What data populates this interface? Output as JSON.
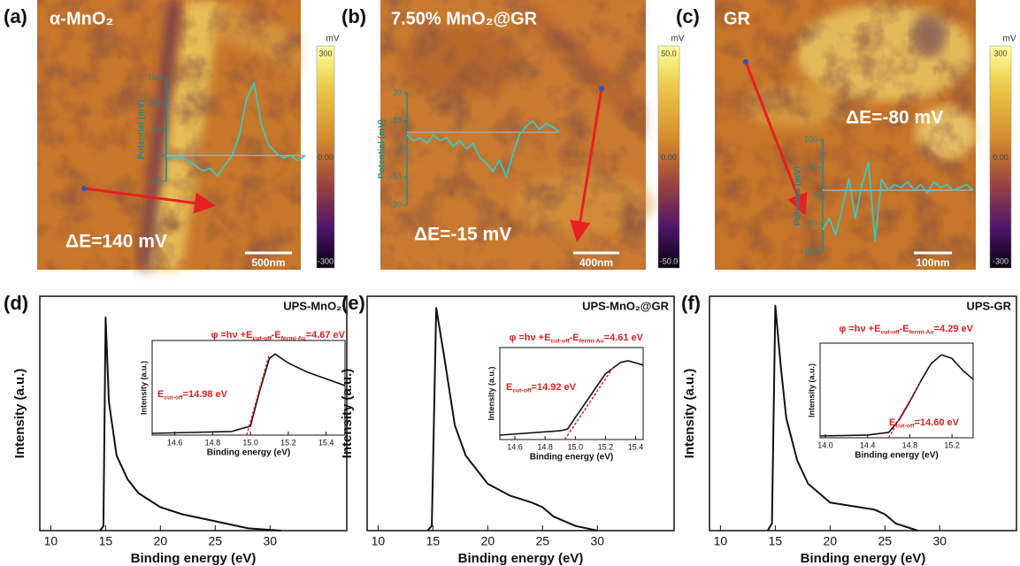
{
  "images": [
    {
      "label": "(a)",
      "title": "α-MnO₂",
      "delta": "ΔE=140 mV",
      "scale_bar": "500nm",
      "colorbar": {
        "unit": "mV",
        "clim": [
          -300,
          300
        ],
        "ticks": [
          300,
          {
            "value": 0,
            "label": "0.00"
          },
          -300
        ]
      }
    },
    {
      "label": "(b)",
      "title": "7.50% MnO₂@GR",
      "delta": "ΔE=-15 mV",
      "scale_bar": "400nm",
      "colorbar": {
        "unit": "mV",
        "clim": [
          -50,
          50
        ],
        "ticks": [
          {
            "value": 50,
            "label": "50.0"
          },
          {
            "value": 0,
            "label": "0.00"
          },
          {
            "value": -50,
            "label": "-50.0"
          }
        ]
      }
    },
    {
      "label": "(c)",
      "title": "GR",
      "delta": "ΔE=-80 mV",
      "scale_bar": "100nm",
      "colorbar": {
        "unit": "mV",
        "clim": [
          -300,
          300
        ],
        "ticks": [
          300,
          {
            "value": 0,
            "label": "0.00"
          },
          -300
        ]
      }
    }
  ],
  "chart_data": [
    {
      "type": "profile",
      "ylabel": "Potential (mV)",
      "color": "#3cc8c0",
      "x": [
        0,
        1,
        2,
        3,
        4,
        5,
        6,
        7,
        8,
        9,
        10,
        11,
        12,
        13,
        14,
        15,
        16,
        17,
        18,
        19
      ],
      "xlim": [
        0,
        19
      ],
      "values": [
        0,
        -5,
        -3,
        -10,
        -20,
        -30,
        -25,
        -40,
        -20,
        0,
        40,
        110,
        140,
        60,
        20,
        5,
        -5,
        0,
        -10,
        0
      ],
      "baseline": 0,
      "ylim": [
        -50,
        150
      ],
      "yticks": [
        -50,
        0,
        50,
        100,
        150
      ]
    },
    {
      "type": "profile",
      "ylabel": "Potential (mV)",
      "color": "#3cc8c0",
      "x": [
        0,
        1,
        2,
        3,
        4,
        5,
        6,
        7,
        8,
        9,
        10,
        11,
        12,
        13,
        14,
        15,
        16,
        17,
        18,
        19,
        20,
        21,
        22,
        23
      ],
      "xlim": [
        0,
        23
      ],
      "values": [
        5,
        3,
        4,
        2,
        5,
        3,
        4,
        1,
        3,
        0,
        2,
        -3,
        -5,
        -8,
        -4,
        -10,
        -2,
        5,
        8,
        10,
        7,
        9,
        8,
        6
      ],
      "baseline": 6,
      "ylim": [
        -20,
        20
      ],
      "yticks": [
        -20,
        -10,
        0,
        10,
        20
      ]
    },
    {
      "type": "profile",
      "ylabel": "Potential (mV)",
      "color": "#3cc8c0",
      "x": [
        0,
        1,
        2,
        3,
        4,
        5,
        6,
        7,
        8,
        9,
        10,
        11,
        12,
        13,
        14,
        15,
        16,
        17,
        18,
        19,
        20,
        21,
        22,
        23
      ],
      "xlim": [
        0,
        23
      ],
      "values": [
        -60,
        -40,
        -70,
        -20,
        30,
        -40,
        20,
        60,
        -80,
        30,
        10,
        20,
        15,
        25,
        10,
        20,
        5,
        25,
        15,
        20,
        10,
        15,
        20,
        10
      ],
      "baseline": 10,
      "ylim": [
        -100,
        100
      ],
      "yticks": [
        -100,
        -50,
        0,
        50,
        100
      ]
    },
    {
      "type": "main",
      "panel_label": "(d)",
      "title": "UPS-MnO₂",
      "xlabel": "Binding energy (eV)",
      "ylabel": "Intensity (a.u.)",
      "color": "#111111",
      "x": [
        14.5,
        14.8,
        15.0,
        15.3,
        16,
        17,
        18,
        20,
        22,
        25,
        28,
        31
      ],
      "values": [
        0,
        0.02,
        0.91,
        0.55,
        0.32,
        0.22,
        0.16,
        0.1,
        0.07,
        0.04,
        0.01,
        0
      ],
      "xlim": [
        9,
        37
      ],
      "ylim": [
        0,
        1
      ],
      "xticks": [
        10,
        15,
        20,
        25,
        30
      ]
    },
    {
      "type": "inset",
      "xlabel": "Binding energy (eV)",
      "ylabel": "Intensity (a.u.)",
      "color": "#111111",
      "x": [
        14.48,
        14.9,
        15.0,
        15.05,
        15.1,
        15.13,
        15.2,
        15.3,
        15.5
      ],
      "values": [
        0.02,
        0.04,
        0.1,
        0.5,
        0.85,
        0.9,
        0.8,
        0.7,
        0.55
      ],
      "xlim": [
        14.48,
        15.5
      ],
      "ylim": [
        0,
        1.05
      ],
      "xticks": [
        14.6,
        14.8,
        {
          "value": 15,
          "label": "15.0"
        },
        15.2,
        15.4
      ],
      "fit": {
        "x": [
          14.98,
          15.1
        ],
        "values": [
          0,
          0.9
        ],
        "color": "#e02020"
      },
      "work_function": [
        "φ =hν +E",
        "cut-off",
        "-E",
        "fermi-Au",
        "=4.67 eV"
      ],
      "cutoff": [
        "E",
        "cut-off",
        "=14.98 eV"
      ]
    },
    {
      "type": "main",
      "panel_label": "(e)",
      "title": "UPS-MnO₂@GR",
      "xlabel": "Binding energy (eV)",
      "ylabel": "Intensity (a.u.)",
      "color": "#111111",
      "x": [
        14.5,
        14.9,
        15.3,
        16,
        17,
        18,
        20,
        22,
        24,
        25,
        26,
        28,
        30
      ],
      "values": [
        0,
        0.02,
        0.95,
        0.75,
        0.45,
        0.32,
        0.2,
        0.15,
        0.12,
        0.1,
        0.06,
        0.02,
        0
      ],
      "xlim": [
        9,
        37
      ],
      "ylim": [
        0,
        1
      ],
      "xticks": [
        10,
        15,
        20,
        25,
        30
      ]
    },
    {
      "type": "inset",
      "xlabel": "Binding energy (eV)",
      "ylabel": "Intensity (a.u.)",
      "color": "#111111",
      "x": [
        14.5,
        14.9,
        14.95,
        15.0,
        15.1,
        15.2,
        15.3,
        15.35,
        15.45
      ],
      "values": [
        0.05,
        0.1,
        0.12,
        0.25,
        0.5,
        0.75,
        0.88,
        0.9,
        0.85
      ],
      "xlim": [
        14.5,
        15.45
      ],
      "ylim": [
        0,
        1.05
      ],
      "xticks": [
        14.6,
        14.8,
        {
          "value": 15,
          "label": "15.0"
        },
        15.2,
        15.4
      ],
      "fit": {
        "x": [
          14.93,
          15.25
        ],
        "values": [
          0,
          0.82
        ],
        "color": "#e02020"
      },
      "work_function": [
        "φ =hν +E",
        "cut-off",
        "-E",
        "fermi-Au",
        "=4.61 eV"
      ],
      "cutoff": [
        "E",
        "cut-off",
        "=14.92 eV"
      ]
    },
    {
      "type": "main",
      "panel_label": "(f)",
      "title": "UPS-GR",
      "xlabel": "Binding energy (eV)",
      "ylabel": "Intensity (a.u.)",
      "color": "#111111",
      "x": [
        14.3,
        14.7,
        15.0,
        15.5,
        16,
        17,
        18,
        20,
        24,
        25,
        26,
        28
      ],
      "values": [
        0,
        0.03,
        0.96,
        0.7,
        0.48,
        0.3,
        0.2,
        0.12,
        0.09,
        0.07,
        0.03,
        0
      ],
      "xlim": [
        9,
        37
      ],
      "ylim": [
        0,
        1
      ],
      "xticks": [
        10,
        15,
        20,
        25,
        30
      ]
    },
    {
      "type": "inset",
      "xlabel": "Binding energy (eV)",
      "ylabel": "Intensity (a.u.)",
      "color": "#111111",
      "x": [
        13.95,
        14.4,
        14.6,
        14.7,
        14.8,
        14.9,
        15.0,
        15.1,
        15.2,
        15.3,
        15.4
      ],
      "values": [
        0.02,
        0.03,
        0.06,
        0.2,
        0.4,
        0.62,
        0.82,
        0.92,
        0.88,
        0.75,
        0.65
      ],
      "xlim": [
        13.95,
        15.4
      ],
      "ylim": [
        0,
        1.05
      ],
      "xticks": [
        {
          "value": 14,
          "label": "14.0"
        },
        14.4,
        14.8,
        15.2
      ],
      "fit": {
        "x": [
          14.6,
          14.9
        ],
        "values": [
          0,
          0.62
        ],
        "color": "#e02020"
      },
      "work_function": [
        "φ =hν +E",
        "cut-off",
        "-E",
        "fermi-Au",
        "=4.29 eV"
      ],
      "cutoff": [
        "E",
        "cut-off",
        "=14.60 eV"
      ]
    }
  ]
}
